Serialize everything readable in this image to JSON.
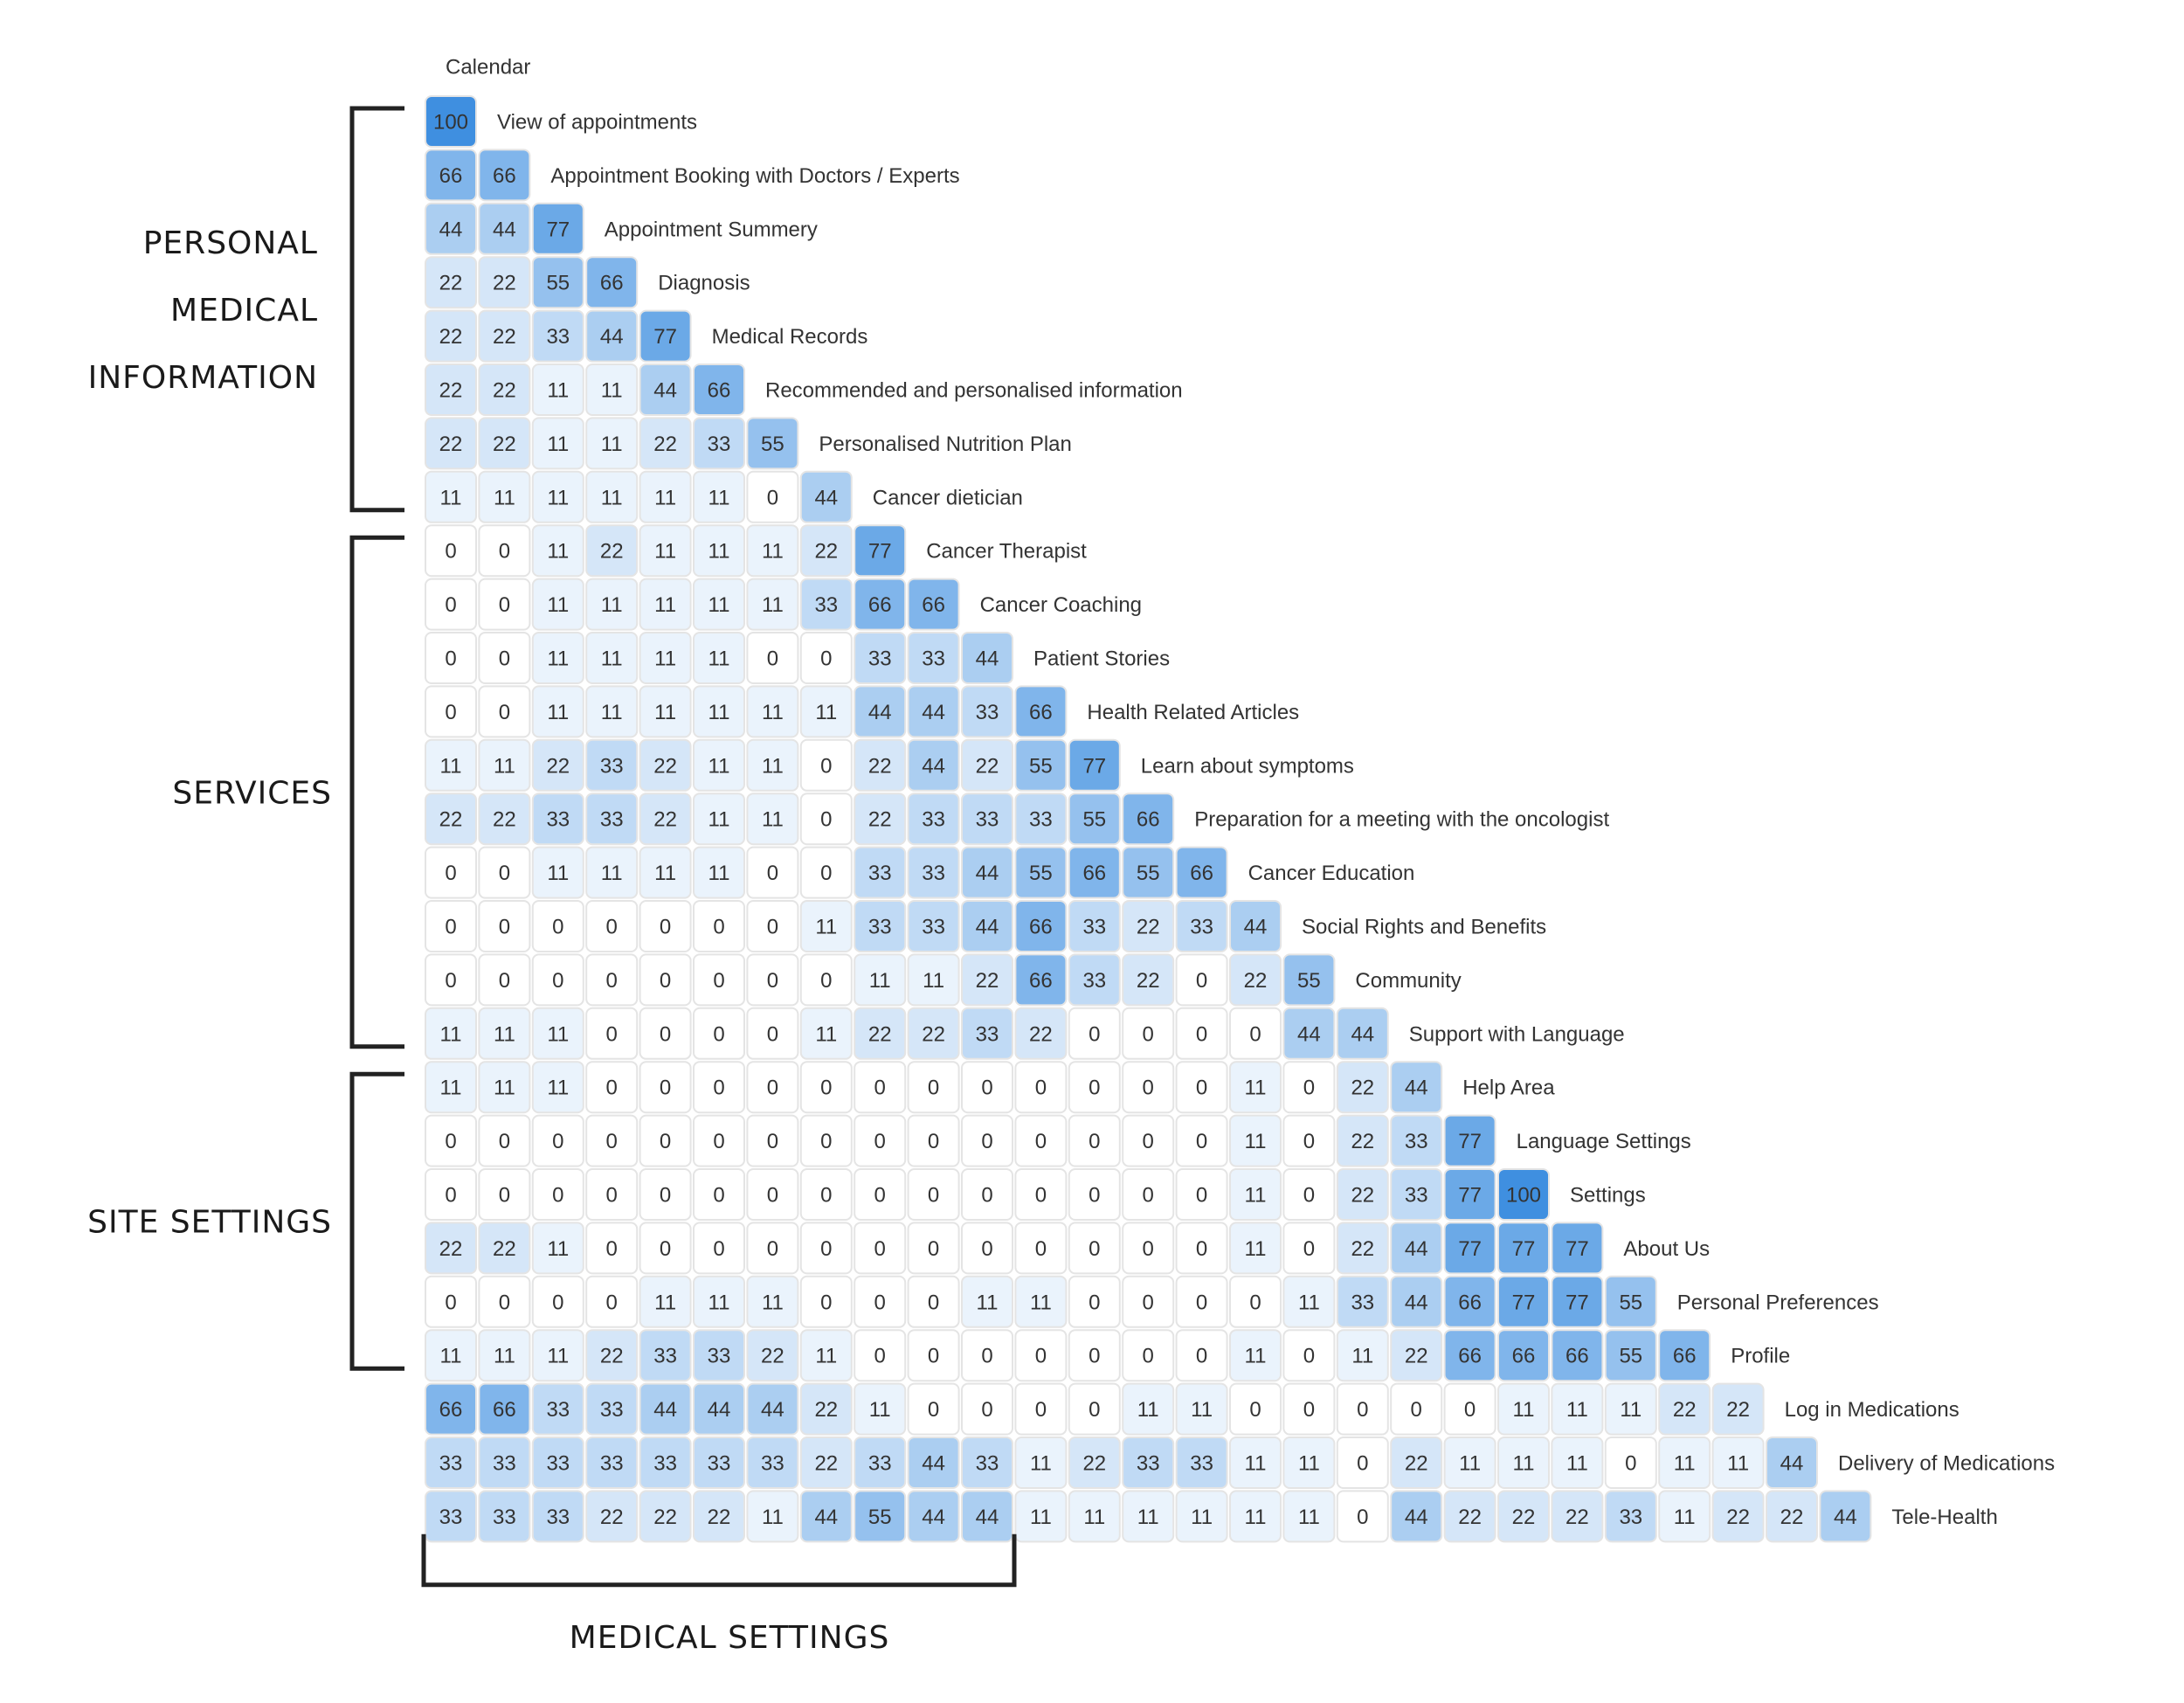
{
  "chart_data": {
    "type": "heatmap",
    "subtype": "lower-triangular similarity matrix",
    "value_range": [
      0,
      100
    ],
    "color_scale": {
      "low": "#ffffff",
      "high": "#3f8fe0",
      "border": "#e4e4e4"
    },
    "header_label": "Calendar",
    "labels": [
      "View of appointments",
      "Appointment Booking with Doctors / Experts",
      "Appointment Summery",
      "Diagnosis",
      "Medical Records",
      "Recommended and personalised information",
      "Personalised Nutrition Plan",
      "Cancer dietician",
      "Cancer Therapist",
      "Cancer Coaching",
      "Patient Stories",
      "Health Related Articles",
      "Learn about symptoms",
      "Preparation for a meeting with the oncologist",
      "Cancer Education",
      "Social Rights and Benefits",
      "Community",
      "Support with Language",
      "Help Area",
      "Language Settings",
      "Settings",
      "About Us",
      "Personal Preferences",
      "Profile",
      "Log in Medications",
      "Delivery of Medications",
      "Tele-Health"
    ],
    "values": [
      [
        100
      ],
      [
        66,
        66
      ],
      [
        44,
        44,
        77
      ],
      [
        22,
        22,
        55,
        66
      ],
      [
        22,
        22,
        33,
        44,
        77
      ],
      [
        22,
        22,
        11,
        11,
        44,
        66
      ],
      [
        22,
        22,
        11,
        11,
        22,
        33,
        55
      ],
      [
        11,
        11,
        11,
        11,
        11,
        11,
        0,
        44
      ],
      [
        0,
        0,
        11,
        22,
        11,
        11,
        11,
        22,
        77
      ],
      [
        0,
        0,
        11,
        11,
        11,
        11,
        11,
        33,
        66,
        66
      ],
      [
        0,
        0,
        11,
        11,
        11,
        11,
        0,
        0,
        33,
        33,
        44
      ],
      [
        0,
        0,
        11,
        11,
        11,
        11,
        11,
        11,
        44,
        44,
        33,
        66
      ],
      [
        11,
        11,
        22,
        33,
        22,
        11,
        11,
        0,
        22,
        44,
        22,
        55,
        77
      ],
      [
        22,
        22,
        33,
        33,
        22,
        11,
        11,
        0,
        22,
        33,
        33,
        33,
        55,
        66
      ],
      [
        0,
        0,
        11,
        11,
        11,
        11,
        0,
        0,
        33,
        33,
        44,
        55,
        66,
        55,
        66
      ],
      [
        0,
        0,
        0,
        0,
        0,
        0,
        0,
        11,
        33,
        33,
        44,
        66,
        33,
        22,
        33,
        44
      ],
      [
        0,
        0,
        0,
        0,
        0,
        0,
        0,
        0,
        11,
        11,
        22,
        66,
        33,
        22,
        0,
        22,
        55
      ],
      [
        11,
        11,
        11,
        0,
        0,
        0,
        0,
        11,
        22,
        22,
        33,
        22,
        0,
        0,
        0,
        0,
        44,
        44
      ],
      [
        11,
        11,
        11,
        0,
        0,
        0,
        0,
        0,
        0,
        0,
        0,
        0,
        0,
        0,
        0,
        11,
        0,
        22,
        44
      ],
      [
        0,
        0,
        0,
        0,
        0,
        0,
        0,
        0,
        0,
        0,
        0,
        0,
        0,
        0,
        0,
        11,
        0,
        22,
        33,
        77
      ],
      [
        0,
        0,
        0,
        0,
        0,
        0,
        0,
        0,
        0,
        0,
        0,
        0,
        0,
        0,
        0,
        11,
        0,
        22,
        33,
        77,
        100
      ],
      [
        22,
        22,
        11,
        0,
        0,
        0,
        0,
        0,
        0,
        0,
        0,
        0,
        0,
        0,
        0,
        11,
        0,
        22,
        44,
        77,
        77,
        77
      ],
      [
        0,
        0,
        0,
        0,
        11,
        11,
        11,
        0,
        0,
        0,
        11,
        11,
        0,
        0,
        0,
        0,
        11,
        33,
        44,
        66,
        77,
        77,
        55
      ],
      [
        11,
        11,
        11,
        22,
        33,
        33,
        22,
        11,
        0,
        0,
        0,
        0,
        0,
        0,
        0,
        11,
        0,
        11,
        22,
        66,
        66,
        66,
        55,
        66
      ],
      [
        66,
        66,
        33,
        33,
        44,
        44,
        44,
        22,
        11,
        0,
        0,
        0,
        0,
        11,
        11,
        0,
        0,
        0,
        0,
        0,
        11,
        11,
        11,
        22,
        22
      ],
      [
        33,
        33,
        33,
        33,
        33,
        33,
        33,
        22,
        33,
        44,
        33,
        11,
        22,
        33,
        33,
        11,
        11,
        0,
        22,
        11,
        11,
        11,
        0,
        11,
        11,
        44
      ],
      [
        33,
        33,
        33,
        22,
        22,
        22,
        11,
        44,
        55,
        44,
        44,
        11,
        11,
        11,
        11,
        11,
        11,
        0,
        44,
        22,
        22,
        22,
        33,
        11,
        22,
        22,
        44
      ]
    ],
    "groups": [
      {
        "label_lines": [
          "PERSONAL",
          "MEDICAL",
          "INFORMATION"
        ],
        "side": "left",
        "rows": [
          0,
          7
        ]
      },
      {
        "label_lines": [
          "SERVICES"
        ],
        "side": "left",
        "rows": [
          8,
          17
        ]
      },
      {
        "label_lines": [
          "SITE SETTINGS"
        ],
        "side": "left",
        "rows": [
          18,
          23
        ]
      },
      {
        "label_lines": [
          "MEDICAL SETTINGS"
        ],
        "side": "bottom",
        "cols": [
          0,
          10
        ]
      }
    ]
  }
}
